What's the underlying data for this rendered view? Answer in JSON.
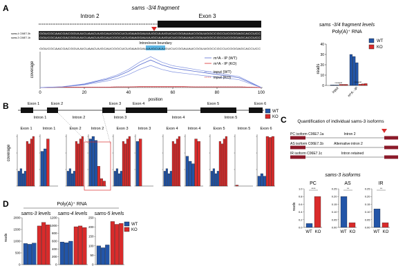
{
  "panels": {
    "A": "A",
    "B": "B",
    "C": "C",
    "D": "D"
  },
  "colors": {
    "wt": "#2255a8",
    "ko": "#d92b2b",
    "black": "#111111",
    "exon_red": "#8b1a2a"
  },
  "legend": {
    "wt": "WT",
    "ko": "KO"
  },
  "panelA": {
    "title": "sams -3/4 fragment",
    "intron_label": "Intron 2",
    "exon_label": "Exon 3",
    "seq_labels": [
      "sams-4 C06E7.3b",
      "sams-3 C06E7.1b"
    ],
    "boundary_label": "Intron/exon boundary",
    "consensus": "GGUCGCAACGACGGUUUCUAACUUGCAUCGGCUCUGAAGGAUUUGCUUUGUCUCGGAUAUCGGUUGGCCGCCUCGGGAGCACCUCC",
    "ylabel": "coverage",
    "xlabel": "position",
    "xticks": [
      "0",
      "20",
      "40",
      "60",
      "80",
      "100"
    ],
    "tracks": [
      "m⁶A - IP (WT)",
      "m⁶A - IP (KO)",
      "input (WT)",
      "input (KO)"
    ],
    "bar_title_line1": "sams -3/4 fragment levels",
    "bar_title_line2": "Poly(A)⁺ RNA",
    "bar_yticks": [
      "0",
      "10",
      "20",
      "30",
      "40"
    ],
    "bar_ylabel": "reads",
    "bar_groups": [
      "input",
      "m⁶A - IP"
    ],
    "signif": [
      "nonsignif.",
      "nonsignif."
    ]
  },
  "panelB": {
    "exon_labels": [
      "Exon 1",
      "Exon 2",
      "Exon 3",
      "Exon 4",
      "Exon 5",
      "Exon 6"
    ],
    "intron_labels": [
      "Intron 1",
      "Intron 2",
      "Intron 3",
      "Intron 4",
      "Intron 5"
    ],
    "panels": [
      "Exon 1",
      "Intron 1",
      "Exon 2",
      "Intron 2",
      "Exon 3",
      "Intron 3",
      "Exon 4",
      "Intron 4",
      "Exon 5",
      "Intron 5",
      "Exon 6"
    ],
    "ylabel": "coverage"
  },
  "panelC": {
    "title": "Quantification of individual sams-3 isoforms",
    "isoforms": [
      {
        "name": "PC isoform C06E7.1a",
        "label": "Intron 2"
      },
      {
        "name": "AS isoform C06E7.1b",
        "label": "Alternative intron 2"
      },
      {
        "name": "IR isoform C06E7.1c",
        "label": "Intron retained"
      }
    ],
    "subtitle": "sams-3 isoforms",
    "groups": [
      "PC",
      "AS",
      "IR"
    ],
    "ylabel": "reads",
    "xlabels": [
      "WT",
      "KO"
    ],
    "stars": [
      "****",
      "**",
      "**"
    ]
  },
  "panelD": {
    "header": "Poly(A)⁺ RNA",
    "ylabel": "reads",
    "titles": [
      "sams-3 levels",
      "sams-4 levels",
      "sams-5 levels"
    ]
  },
  "chart_data": [
    {
      "type": "line",
      "title": "sams -3/4 fragment",
      "xlabel": "position",
      "ylabel": "coverage",
      "xlim": [
        0,
        100
      ],
      "x": [
        0,
        10,
        20,
        30,
        35,
        40,
        45,
        50,
        55,
        60,
        65,
        70,
        75,
        80,
        85,
        90,
        95,
        100
      ],
      "series": [
        {
          "name": "m⁶A - IP (WT)",
          "values": [
            0,
            0.02,
            0.1,
            0.25,
            0.35,
            0.5,
            0.7,
            0.85,
            0.7,
            0.6,
            0.55,
            0.5,
            0.45,
            0.4,
            0.35,
            0.3,
            0.15,
            0
          ]
        },
        {
          "name": "m⁶A - IP (KO)",
          "values": [
            0,
            0.01,
            0.01,
            0.01,
            0.02,
            0.02,
            0.03,
            0.03,
            0.03,
            0.03,
            0.03,
            0.02,
            0.02,
            0.02,
            0.02,
            0.02,
            0.01,
            0
          ]
        },
        {
          "name": "input (WT)",
          "values": [
            0,
            0.01,
            0.01,
            0.01,
            0.02,
            0.02,
            0.02,
            0.02,
            0.02,
            0.02,
            0.02,
            0.02,
            0.02,
            0.02,
            0.02,
            0.02,
            0.01,
            0
          ]
        },
        {
          "name": "input (KO)",
          "values": [
            0,
            0.01,
            0.01,
            0.01,
            0.02,
            0.02,
            0.02,
            0.02,
            0.02,
            0.02,
            0.02,
            0.02,
            0.02,
            0.02,
            0.02,
            0.02,
            0.01,
            0
          ]
        }
      ]
    },
    {
      "type": "bar",
      "title": "sams -3/4 fragment levels",
      "ylabel": "reads",
      "ylim": [
        0,
        40
      ],
      "categories": [
        "input",
        "m⁶A - IP"
      ],
      "series": [
        {
          "name": "WT",
          "values": [
            [
              0.5,
              0.5,
              0.5
            ],
            [
              30,
              28,
              22
            ]
          ]
        },
        {
          "name": "KO",
          "values": [
            [
              1,
              1,
              1
            ],
            [
              1.2,
              1.5,
              1.8
            ]
          ]
        }
      ]
    },
    {
      "type": "bar",
      "title": "sams-3 isoforms",
      "ylabel": "reads",
      "categories": [
        "PC",
        "AS",
        "IR"
      ],
      "series": [
        {
          "name": "WT",
          "values": [
            0.1,
            0.2,
            0.12
          ]
        },
        {
          "name": "KO",
          "values": [
            0.8,
            0.03,
            0.03
          ]
        }
      ]
    },
    {
      "type": "bar",
      "title": "sams-3 levels",
      "ylabel": "reads",
      "ylim": [
        0,
        2000
      ],
      "series": [
        {
          "name": "WT",
          "values": [
            900,
            870,
            920
          ]
        },
        {
          "name": "KO",
          "values": [
            1650,
            1800,
            1700
          ]
        }
      ]
    },
    {
      "type": "bar",
      "title": "sams-4 levels",
      "ylabel": "reads",
      "ylim": [
        0,
        1200
      ],
      "series": [
        {
          "name": "WT",
          "values": [
            580,
            560,
            600
          ]
        },
        {
          "name": "KO",
          "values": [
            970,
            990,
            950
          ]
        }
      ]
    },
    {
      "type": "bar",
      "title": "sams-5 levels",
      "ylabel": "reads",
      "ylim": [
        0,
        250
      ],
      "series": [
        {
          "name": "WT",
          "values": [
            100,
            90,
            105
          ]
        },
        {
          "name": "KO",
          "values": [
            230,
            215,
            220
          ]
        }
      ]
    }
  ]
}
